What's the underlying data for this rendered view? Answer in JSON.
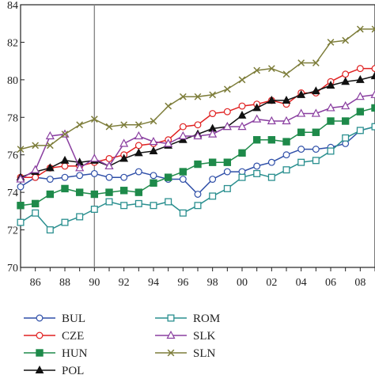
{
  "chart_data": {
    "type": "line",
    "title": "",
    "xlabel": "",
    "ylabel": "",
    "x": [
      1985,
      1986,
      1987,
      1988,
      1989,
      1990,
      1991,
      1992,
      1993,
      1994,
      1995,
      1996,
      1997,
      1998,
      1999,
      2000,
      2001,
      2002,
      2003,
      2004,
      2005,
      2006,
      2007,
      2008,
      2009
    ],
    "x_tick_values": [
      1986,
      1988,
      1990,
      1992,
      1994,
      1996,
      1998,
      2000,
      2002,
      2004,
      2006,
      2008
    ],
    "x_tick_labels": [
      "86",
      "88",
      "90",
      "92",
      "94",
      "96",
      "98",
      "00",
      "02",
      "04",
      "06",
      "08"
    ],
    "xlim": [
      1985,
      2009
    ],
    "ylim": [
      70,
      84
    ],
    "y_ticks": [
      70,
      72,
      74,
      76,
      78,
      80,
      82,
      84
    ],
    "grid": false,
    "reference_line_x": 1990,
    "legend_position": "bottom",
    "series": [
      {
        "name": "BUL",
        "color": "#2f4fa8",
        "marker": "circle",
        "values": [
          74.3,
          74.8,
          74.7,
          74.8,
          74.9,
          75.0,
          74.8,
          74.8,
          75.1,
          74.9,
          74.7,
          74.7,
          73.9,
          74.7,
          75.1,
          75.1,
          75.4,
          75.6,
          76.0,
          76.3,
          76.3,
          76.4,
          76.6,
          77.3,
          77.5
        ]
      },
      {
        "name": "CZE",
        "color": "#e02020",
        "marker": "circle",
        "values": [
          74.8,
          74.8,
          75.3,
          75.4,
          75.4,
          75.6,
          75.8,
          76.0,
          76.5,
          76.6,
          76.8,
          77.5,
          77.6,
          78.2,
          78.3,
          78.6,
          78.7,
          78.9,
          78.7,
          79.3,
          79.3,
          79.9,
          80.3,
          80.6,
          80.6
        ]
      },
      {
        "name": "HUN",
        "color": "#1e8a4a",
        "marker": "square",
        "values": [
          73.3,
          73.4,
          73.9,
          74.2,
          74.0,
          73.9,
          74.0,
          74.1,
          74.0,
          74.5,
          74.8,
          75.1,
          75.5,
          75.6,
          75.6,
          76.1,
          76.8,
          76.8,
          76.7,
          77.2,
          77.2,
          77.8,
          77.8,
          78.3,
          78.5
        ]
      },
      {
        "name": "POL",
        "color": "#111111",
        "marker": "triangle",
        "values": [
          74.8,
          75.1,
          75.3,
          75.7,
          75.6,
          75.7,
          75.4,
          75.8,
          76.1,
          76.2,
          76.5,
          76.8,
          77.1,
          77.4,
          77.5,
          78.1,
          78.5,
          78.9,
          78.9,
          79.2,
          79.4,
          79.7,
          79.9,
          80.0,
          80.2
        ]
      },
      {
        "name": "ROM",
        "color": "#2a8f8f",
        "marker": "square-open",
        "values": [
          72.4,
          72.9,
          72.0,
          72.4,
          72.7,
          73.1,
          73.5,
          73.3,
          73.4,
          73.3,
          73.5,
          72.9,
          73.3,
          73.8,
          74.2,
          74.8,
          75.0,
          74.8,
          75.2,
          75.6,
          75.7,
          76.2,
          76.9,
          77.3,
          77.5
        ]
      },
      {
        "name": "SLK",
        "color": "#8a3fa0",
        "marker": "triangle-open",
        "values": [
          74.7,
          75.2,
          77.0,
          77.1,
          75.3,
          75.8,
          75.4,
          76.6,
          77.0,
          76.7,
          76.6,
          77.0,
          77.0,
          77.1,
          77.5,
          77.5,
          77.9,
          77.8,
          77.8,
          78.2,
          78.2,
          78.5,
          78.6,
          79.1,
          79.2
        ]
      },
      {
        "name": "SLN",
        "color": "#7d7d3a",
        "marker": "x",
        "values": [
          76.3,
          76.5,
          76.5,
          77.1,
          77.6,
          77.9,
          77.5,
          77.6,
          77.6,
          77.8,
          78.6,
          79.1,
          79.1,
          79.2,
          79.5,
          80.0,
          80.5,
          80.6,
          80.3,
          80.9,
          80.9,
          82.0,
          82.1,
          82.7,
          82.7
        ]
      }
    ]
  }
}
